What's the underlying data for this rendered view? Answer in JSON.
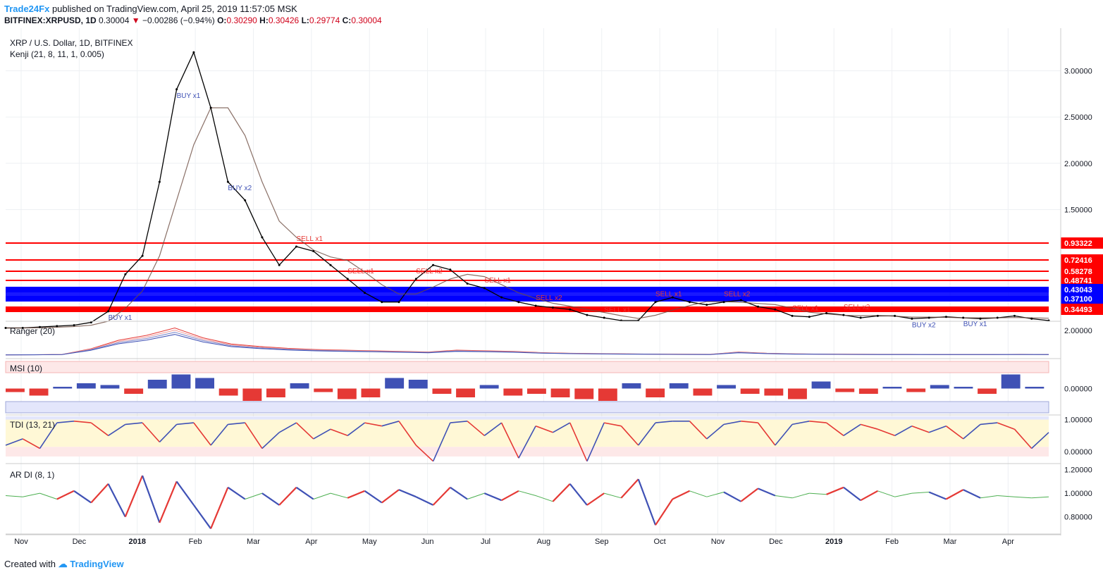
{
  "header": {
    "publisher": "Trade24Fx",
    "published_text": "published on TradingView.com, April 25, 2019 11:57:05 MSK",
    "symbol": "BITFINEX:XRPUSD, 1D",
    "last": "0.30004",
    "change": "−0.00286 (−0.94%)",
    "open_label": "O:",
    "open": "0.30290",
    "high_label": "H:",
    "high": "0.30426",
    "low_label": "L:",
    "low": "0.29774",
    "close_label": "C:",
    "close": "0.30004"
  },
  "footer": {
    "created_with": "Created with",
    "brand": "TradingView"
  },
  "colors": {
    "up": "#e53935",
    "down": "#3f51b5",
    "level_line": "#ff0000",
    "support_band": "#0000ff",
    "grid": "#eef0f3",
    "axis": "#cccccc"
  },
  "chart_data": [
    {
      "type": "line",
      "panel": "price",
      "title": "XRP / U.S. Dollar, 1D, BITFINEX",
      "subtitle": "Kenji (21, 8, 11, 1, 0.005)",
      "x_labels": [
        "Nov",
        "Dec",
        "2018",
        "Feb",
        "Mar",
        "Apr",
        "May",
        "Jun",
        "Jul",
        "Aug",
        "Sep",
        "Oct",
        "Nov",
        "Dec",
        "2019",
        "Feb",
        "Mar",
        "Apr"
      ],
      "y_ticks": [
        "3.00000",
        "2.50000",
        "2.00000",
        "1.50000"
      ],
      "ylim": [
        0.3,
        3.4
      ],
      "price_levels": [
        "0.93322",
        "0.72416",
        "0.58278",
        "0.48741",
        "0.43043",
        "0.37100",
        "0.34493"
      ],
      "series": [
        {
          "values": [
            0.22,
            0.22,
            0.23,
            0.24,
            0.25,
            0.28,
            0.4,
            0.8,
            1.0,
            1.8,
            2.8,
            3.2,
            2.6,
            1.8,
            1.6,
            1.2,
            0.9,
            1.1,
            1.05,
            0.9,
            0.75,
            0.6,
            0.5,
            0.5,
            0.75,
            0.9,
            0.85,
            0.7,
            0.65,
            0.55,
            0.5,
            0.46,
            0.44,
            0.42,
            0.36,
            0.33,
            0.3,
            0.3,
            0.5,
            0.55,
            0.5,
            0.47,
            0.5,
            0.52,
            0.45,
            0.42,
            0.35,
            0.34,
            0.38,
            0.36,
            0.33,
            0.35,
            0.35,
            0.32,
            0.33,
            0.34,
            0.33,
            0.32,
            0.33,
            0.35,
            0.32,
            0.3
          ]
        }
      ],
      "signals": [
        "BUY x1",
        "BUY x1",
        "BUY x2",
        "SELL x1",
        "SELL x1",
        "SELL x2",
        "SELL x1",
        "SELL x2",
        "SELL x1",
        "SELL x1",
        "SELL x2",
        "SELL x1",
        "SELL x2",
        "BUY x2",
        "BUY x1"
      ]
    },
    {
      "type": "line",
      "panel": "ranger",
      "title": "Ranger (20)",
      "y_ticks": [
        "2.00000"
      ],
      "series": [
        {
          "values": [
            0.02,
            0.03,
            0.05,
            0.5,
            1.2,
            1.6,
            2.2,
            1.4,
            0.9,
            0.7,
            0.55,
            0.45,
            0.4,
            0.35,
            0.3,
            0.25,
            0.4,
            0.35,
            0.3,
            0.2,
            0.15,
            0.12,
            0.1,
            0.08,
            0.07,
            0.06,
            0.25,
            0.15,
            0.1,
            0.08,
            0.07,
            0.06,
            0.06,
            0.05,
            0.05,
            0.05,
            0.06,
            0.05
          ]
        }
      ]
    },
    {
      "type": "bar",
      "panel": "msi",
      "title": "MSI (10)",
      "y_ticks": [
        "0.00000"
      ],
      "values": [
        -0.2,
        -0.4,
        0.1,
        0.3,
        0.2,
        -0.3,
        0.5,
        0.8,
        0.6,
        -0.4,
        -0.7,
        -0.5,
        0.3,
        -0.2,
        -0.6,
        -0.5,
        0.6,
        0.5,
        -0.3,
        -0.5,
        0.2,
        -0.4,
        -0.3,
        -0.5,
        -0.6,
        -0.7,
        0.3,
        -0.5,
        0.3,
        -0.4,
        0.2,
        -0.3,
        -0.4,
        -0.6,
        0.4,
        -0.2,
        -0.3,
        0.1,
        -0.2,
        0.2,
        0.1,
        -0.3,
        0.8,
        0.1
      ]
    },
    {
      "type": "line",
      "panel": "tdi",
      "title": "TDI (13, 21)",
      "y_ticks": [
        "1.00000",
        "0.00000"
      ],
      "ylim": [
        -0.35,
        1.1
      ],
      "series": [
        {
          "values": [
            0.2,
            0.4,
            0.1,
            0.9,
            0.95,
            0.9,
            0.5,
            0.85,
            0.9,
            0.3,
            0.85,
            0.9,
            0.2,
            0.85,
            0.9,
            0.1,
            0.6,
            0.9,
            0.4,
            0.7,
            0.5,
            0.9,
            0.8,
            0.95,
            0.2,
            -0.3,
            0.9,
            0.95,
            0.5,
            0.9,
            -0.2,
            0.8,
            0.6,
            0.9,
            -0.3,
            0.9,
            0.8,
            0.2,
            0.9,
            0.95,
            0.95,
            0.4,
            0.85,
            0.95,
            0.9,
            0.2,
            0.85,
            0.95,
            0.9,
            0.5,
            0.85,
            0.7,
            0.5,
            0.8,
            0.6,
            0.8,
            0.4,
            0.85,
            0.9,
            0.7,
            0.1,
            0.6
          ]
        }
      ]
    },
    {
      "type": "line",
      "panel": "ardi",
      "title": "AR DI (8, 1)",
      "y_ticks": [
        "1.20000",
        "1.00000",
        "0.80000"
      ],
      "ylim": [
        0.66,
        1.24
      ],
      "series": [
        {
          "values": [
            0.98,
            0.97,
            1.0,
            0.95,
            1.02,
            0.92,
            1.08,
            0.8,
            1.15,
            0.75,
            1.1,
            0.9,
            0.7,
            1.05,
            0.95,
            1.0,
            0.9,
            1.05,
            0.95,
            1.0,
            0.96,
            1.02,
            0.92,
            1.03,
            0.97,
            0.9,
            1.05,
            0.95,
            1.0,
            0.94,
            1.02,
            0.98,
            0.93,
            1.08,
            0.9,
            1.0,
            0.96,
            1.12,
            0.73,
            0.95,
            1.02,
            0.97,
            1.01,
            0.93,
            1.04,
            0.98,
            0.96,
            1.0,
            0.99,
            1.05,
            0.94,
            1.02,
            0.97,
            1.0,
            1.01,
            0.95,
            1.03,
            0.96,
            0.98,
            0.97,
            0.96,
            0.97
          ]
        }
      ]
    }
  ]
}
